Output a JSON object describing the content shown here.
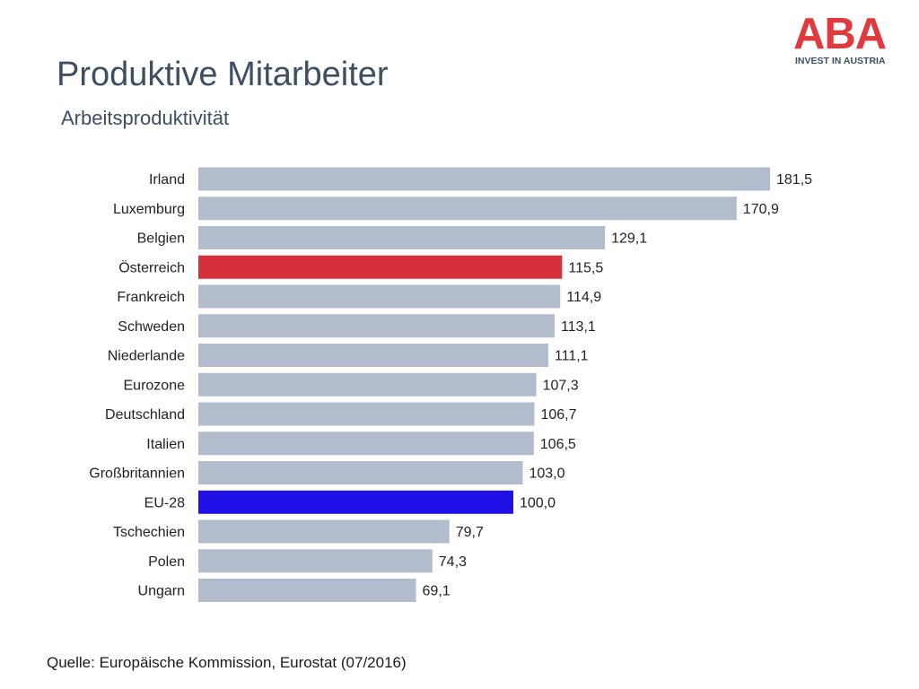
{
  "header": {
    "title": "Produktive Mitarbeiter",
    "subtitle": "Arbeitsproduktivität"
  },
  "logo": {
    "mark": "ABA",
    "tagline": "INVEST IN AUSTRIA",
    "color": "#e0393e"
  },
  "footer": {
    "source": "Quelle: Europäische Kommission, Eurostat (07/2016)"
  },
  "chart_data": {
    "type": "bar",
    "orientation": "horizontal",
    "categories": [
      "Irland",
      "Luxemburg",
      "Belgien",
      "Österreich",
      "Frankreich",
      "Schweden",
      "Niederlande",
      "Eurozone",
      "Deutschland",
      "Italien",
      "Großbritannien",
      "EU-28",
      "Tschechien",
      "Polen",
      "Ungarn"
    ],
    "values": [
      181.5,
      170.9,
      129.1,
      115.5,
      114.9,
      113.1,
      111.1,
      107.3,
      106.7,
      106.5,
      103.0,
      100.0,
      79.7,
      74.3,
      69.1
    ],
    "value_labels": [
      "181,5",
      "170,9",
      "129,1",
      "115,5",
      "114,9",
      "113,1",
      "111,1",
      "107,3",
      "106,7",
      "106,5",
      "103,0",
      "100,0",
      "79,7",
      "74,3",
      "69,1"
    ],
    "xlim": [
      0,
      181.5
    ],
    "grid": false,
    "colors": {
      "default": "#b2bccd",
      "highlight": {
        "Österreich": "#d6303a",
        "EU-28": "#1f10e6"
      }
    }
  }
}
